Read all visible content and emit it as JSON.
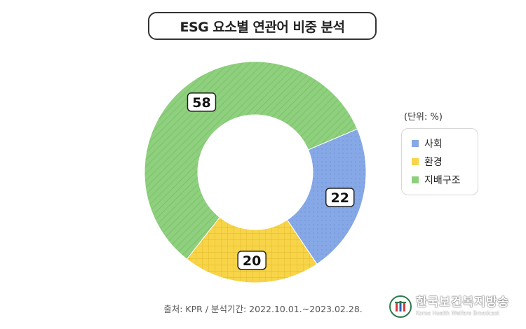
{
  "header": {
    "title": "ESG 요소별 연관어 비중 분석"
  },
  "chart_data": {
    "type": "pie",
    "title": "ESG 요소별 연관어 비중 분석",
    "unit_label": "(단위: %)",
    "categories": [
      "사회",
      "환경",
      "지배구조"
    ],
    "values": [
      22,
      20,
      58
    ],
    "data_labels": [
      "22",
      "20",
      "58"
    ],
    "colors": [
      "#86a8e6",
      "#f7d448",
      "#8ed07d"
    ],
    "legend": {
      "placement": "right",
      "entries": [
        "사회",
        "환경",
        "지배구조"
      ]
    }
  },
  "footer": {
    "source": "출처: KPR / 분석기간: 2022.10.01.~2023.02.28."
  },
  "watermark": {
    "text_ko": "한국보건복지방송",
    "text_en": "Korea Health Welfare Broadcast"
  }
}
